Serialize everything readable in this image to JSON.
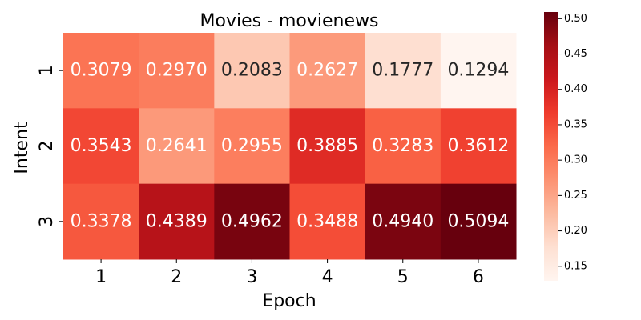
{
  "chart_data": {
    "type": "heatmap",
    "title": "Movies - movienews",
    "xlabel": "Epoch",
    "ylabel": "Intent",
    "x_categories": [
      "1",
      "2",
      "3",
      "4",
      "5",
      "6"
    ],
    "y_categories": [
      "1",
      "2",
      "3"
    ],
    "values": [
      [
        0.3079,
        0.297,
        0.2083,
        0.2627,
        0.1777,
        0.1294
      ],
      [
        0.3543,
        0.2641,
        0.2955,
        0.3885,
        0.3283,
        0.3612
      ],
      [
        0.3378,
        0.4389,
        0.4962,
        0.3488,
        0.494,
        0.5094
      ]
    ],
    "value_labels": [
      [
        "0.3079",
        "0.2970",
        "0.2083",
        "0.2627",
        "0.1777",
        "0.1294"
      ],
      [
        "0.3543",
        "0.2641",
        "0.2955",
        "0.3885",
        "0.3283",
        "0.3612"
      ],
      [
        "0.3378",
        "0.4389",
        "0.4962",
        "0.3488",
        "0.4940",
        "0.5094"
      ]
    ],
    "colormap": "Reds",
    "color_range": [
      0.1294,
      0.5094
    ],
    "colorbar_ticks": [
      0.15,
      0.2,
      0.25,
      0.3,
      0.35,
      0.4,
      0.45,
      0.5
    ],
    "colorbar_tick_labels": [
      "0.15",
      "0.20",
      "0.25",
      "0.30",
      "0.35",
      "0.40",
      "0.45",
      "0.50"
    ],
    "light_text_color": "#ffffff",
    "dark_text_color": "#262626"
  }
}
